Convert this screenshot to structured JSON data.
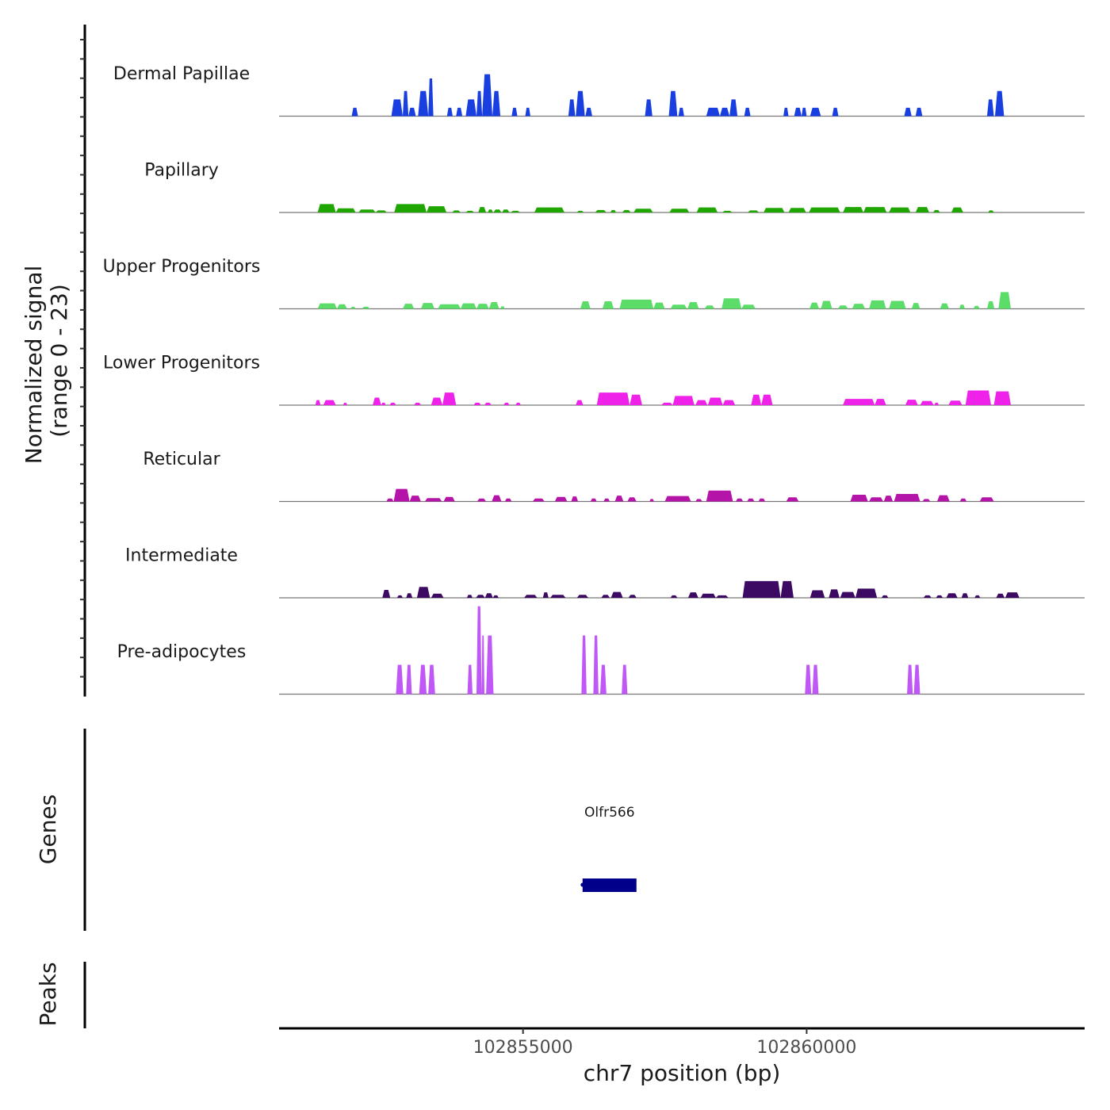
{
  "chart_data": {
    "type": "area",
    "title": "",
    "ylabel_line1": "Normalized signal",
    "ylabel_line2": "(range 0 - 23)",
    "xlabel": "chr7 position (bp)",
    "xlim": [
      102850700,
      102864900
    ],
    "ylim": [
      0,
      23
    ],
    "x_ticks": [
      {
        "value": 102855000,
        "label": "102855000"
      },
      {
        "value": 102860000,
        "label": "102860000"
      }
    ],
    "tracks": [
      {
        "name": "Dermal Papillae",
        "color": "#1a3fe0",
        "peaks": [
          [
            102851980,
            102852090,
            2
          ],
          [
            102852680,
            102852880,
            4
          ],
          [
            102852880,
            102852980,
            6
          ],
          [
            102852980,
            102853110,
            2
          ],
          [
            102853150,
            102853330,
            6
          ],
          [
            102853330,
            102853420,
            9
          ],
          [
            102853660,
            102853760,
            2
          ],
          [
            102853820,
            102853930,
            2
          ],
          [
            102853990,
            102854180,
            4
          ],
          [
            102854180,
            102854280,
            6
          ],
          [
            102854280,
            102854460,
            10
          ],
          [
            102854460,
            102854600,
            6
          ],
          [
            102854800,
            102854900,
            2
          ],
          [
            102855040,
            102855130,
            2
          ],
          [
            102855800,
            102855920,
            4
          ],
          [
            102855930,
            102856090,
            6
          ],
          [
            102856100,
            102856220,
            2
          ],
          [
            102857150,
            102857280,
            4
          ],
          [
            102857570,
            102857720,
            6
          ],
          [
            102857740,
            102857840,
            2
          ],
          [
            102858230,
            102858470,
            2
          ],
          [
            102858470,
            102858640,
            2
          ],
          [
            102858640,
            102858780,
            4
          ],
          [
            102858900,
            102859010,
            2
          ],
          [
            102859590,
            102859680,
            2
          ],
          [
            102859780,
            102859910,
            2
          ],
          [
            102859910,
            102860000,
            2
          ],
          [
            102860060,
            102860250,
            2
          ],
          [
            102860450,
            102860560,
            2
          ],
          [
            102861720,
            102861850,
            2
          ],
          [
            102861920,
            102862040,
            2
          ],
          [
            102863180,
            102863300,
            4
          ],
          [
            102863320,
            102863480,
            6
          ]
        ]
      },
      {
        "name": "Papillary",
        "color": "#1fa600",
        "peaks": [
          [
            102851380,
            102851700,
            2
          ],
          [
            102851700,
            102852050,
            1
          ],
          [
            102852100,
            102852400,
            0.7
          ],
          [
            102852400,
            102852600,
            0.5
          ],
          [
            102852730,
            102853300,
            2
          ],
          [
            102853300,
            102853650,
            1.5
          ],
          [
            102853750,
            102853900,
            0.5
          ],
          [
            102853990,
            102854140,
            0.4
          ],
          [
            102854210,
            102854350,
            1.3
          ],
          [
            102854380,
            102854470,
            0.7
          ],
          [
            102854480,
            102854620,
            0.7
          ],
          [
            102854630,
            102854760,
            0.7
          ],
          [
            102854780,
            102854950,
            0.4
          ],
          [
            102855200,
            102855730,
            1.2
          ],
          [
            102855950,
            102856070,
            0.4
          ],
          [
            102856270,
            102856470,
            0.6
          ],
          [
            102856540,
            102856640,
            0.6
          ],
          [
            102856750,
            102856900,
            0.6
          ],
          [
            102856950,
            102857290,
            0.9
          ],
          [
            102857580,
            102857930,
            0.9
          ],
          [
            102858060,
            102858430,
            1.2
          ],
          [
            102858510,
            102858690,
            0.4
          ],
          [
            102858960,
            102859160,
            0.5
          ],
          [
            102859240,
            102859610,
            1.1
          ],
          [
            102859680,
            102859990,
            1.1
          ],
          [
            102860040,
            102860590,
            1.2
          ],
          [
            102860640,
            102861000,
            1.3
          ],
          [
            102861000,
            102861410,
            1.3
          ],
          [
            102861450,
            102861830,
            1.2
          ],
          [
            102861920,
            102862160,
            1.3
          ],
          [
            102862230,
            102862350,
            0.6
          ],
          [
            102862550,
            102862760,
            1.2
          ],
          [
            102863200,
            102863300,
            0.5
          ]
        ]
      },
      {
        "name": "Upper Progenitors",
        "color": "#5cdd6a",
        "peaks": [
          [
            102851380,
            102851720,
            1.3
          ],
          [
            102851720,
            102851900,
            1.1
          ],
          [
            102851960,
            102852050,
            0.5
          ],
          [
            102852160,
            102852300,
            0.5
          ],
          [
            102852880,
            102853080,
            1.2
          ],
          [
            102853200,
            102853440,
            1.4
          ],
          [
            102853500,
            102853900,
            1.1
          ],
          [
            102853900,
            102854180,
            1.3
          ],
          [
            102854180,
            102854400,
            1.2
          ],
          [
            102854400,
            102854580,
            1.6
          ],
          [
            102854600,
            102854680,
            0.6
          ],
          [
            102856010,
            102856190,
            1.8
          ],
          [
            102856400,
            102856600,
            1.8
          ],
          [
            102856700,
            102857300,
            2.2
          ],
          [
            102857300,
            102857500,
            1.5
          ],
          [
            102857600,
            102857890,
            1.0
          ],
          [
            102857900,
            102858100,
            1.6
          ],
          [
            102858200,
            102858380,
            0.8
          ],
          [
            102858500,
            102858850,
            2.5
          ],
          [
            102858850,
            102859100,
            1.0
          ],
          [
            102860050,
            102860220,
            1.5
          ],
          [
            102860250,
            102860450,
            1.9
          ],
          [
            102860550,
            102860730,
            0.8
          ],
          [
            102860800,
            102861030,
            1.2
          ],
          [
            102861100,
            102861400,
            2.0
          ],
          [
            102861450,
            102861750,
            1.9
          ],
          [
            102861850,
            102862000,
            1.4
          ],
          [
            102862350,
            102862510,
            1.3
          ],
          [
            102862690,
            102862790,
            1.0
          ],
          [
            102862940,
            102863050,
            0.7
          ],
          [
            102863180,
            102863310,
            1.8
          ],
          [
            102863380,
            102863600,
            4.0
          ]
        ]
      },
      {
        "name": "Lower Progenitors",
        "color": "#ee22e8",
        "peaks": [
          [
            102851340,
            102851430,
            1.2
          ],
          [
            102851480,
            102851700,
            1.2
          ],
          [
            102851830,
            102851900,
            0.6
          ],
          [
            102852350,
            102852500,
            1.8
          ],
          [
            102852500,
            102852580,
            0.6
          ],
          [
            102852650,
            102852760,
            0.6
          ],
          [
            102853080,
            102853200,
            0.6
          ],
          [
            102853380,
            102853580,
            1.8
          ],
          [
            102853580,
            102853820,
            3.0
          ],
          [
            102854130,
            102854260,
            0.6
          ],
          [
            102854320,
            102854440,
            0.6
          ],
          [
            102854660,
            102854760,
            0.6
          ],
          [
            102854870,
            102854960,
            0.6
          ],
          [
            102855930,
            102856060,
            1.2
          ],
          [
            102856300,
            102856880,
            3.0
          ],
          [
            102856880,
            102857100,
            2.5
          ],
          [
            102857440,
            102857640,
            0.6
          ],
          [
            102857640,
            102858020,
            2.2
          ],
          [
            102858040,
            102858250,
            1.2
          ],
          [
            102858260,
            102858520,
            1.8
          ],
          [
            102858520,
            102858740,
            1.2
          ],
          [
            102859020,
            102859200,
            2.5
          ],
          [
            102859200,
            102859400,
            2.5
          ],
          [
            102860640,
            102861200,
            1.5
          ],
          [
            102861200,
            102861400,
            1.5
          ],
          [
            102861740,
            102861960,
            1.3
          ],
          [
            102862000,
            102862240,
            1.0
          ],
          [
            102862250,
            102862330,
            0.6
          ],
          [
            102862500,
            102862740,
            1.1
          ],
          [
            102862800,
            102863250,
            3.5
          ],
          [
            102863300,
            102863600,
            3.3
          ]
        ]
      },
      {
        "name": "Reticular",
        "color": "#b514a8",
        "peaks": [
          [
            102852590,
            102852720,
            0.7
          ],
          [
            102852720,
            102853000,
            3.0
          ],
          [
            102853000,
            102853200,
            1.4
          ],
          [
            102853270,
            102853570,
            0.8
          ],
          [
            102853600,
            102853800,
            1.1
          ],
          [
            102854190,
            102854350,
            0.7
          ],
          [
            102854450,
            102854620,
            1.5
          ],
          [
            102854680,
            102854800,
            0.7
          ],
          [
            102855170,
            102855380,
            0.7
          ],
          [
            102855560,
            102855780,
            1.1
          ],
          [
            102855850,
            102855970,
            1.2
          ],
          [
            102856190,
            102856300,
            0.7
          ],
          [
            102856420,
            102856530,
            0.7
          ],
          [
            102856620,
            102856770,
            1.4
          ],
          [
            102856840,
            102857000,
            1.0
          ],
          [
            102857230,
            102857310,
            0.6
          ],
          [
            102857500,
            102857960,
            1.3
          ],
          [
            102858040,
            102858160,
            0.6
          ],
          [
            102858230,
            102858700,
            2.6
          ],
          [
            102858750,
            102858880,
            0.7
          ],
          [
            102858950,
            102859080,
            0.7
          ],
          [
            102859150,
            102859270,
            0.7
          ],
          [
            102859640,
            102859860,
            1.0
          ],
          [
            102860770,
            102861080,
            1.6
          ],
          [
            102861100,
            102861350,
            1.0
          ],
          [
            102861360,
            102861520,
            1.4
          ],
          [
            102861540,
            102862000,
            1.8
          ],
          [
            102862040,
            102862180,
            0.6
          ],
          [
            102862300,
            102862520,
            1.5
          ],
          [
            102862700,
            102862820,
            0.7
          ],
          [
            102863050,
            102863300,
            1.0
          ]
        ]
      },
      {
        "name": "Intermediate",
        "color": "#3d0a63",
        "peaks": [
          [
            102852520,
            102852660,
            1.9
          ],
          [
            102852780,
            102852880,
            0.6
          ],
          [
            102852940,
            102853050,
            1.1
          ],
          [
            102853130,
            102853360,
            2.6
          ],
          [
            102853380,
            102853600,
            1.0
          ],
          [
            102854010,
            102854110,
            0.7
          ],
          [
            102854170,
            102854330,
            0.7
          ],
          [
            102854330,
            102854470,
            1.1
          ],
          [
            102854470,
            102854570,
            0.6
          ],
          [
            102855020,
            102855250,
            0.7
          ],
          [
            102855350,
            102855450,
            1.3
          ],
          [
            102855480,
            102855750,
            0.7
          ],
          [
            102855950,
            102856150,
            0.7
          ],
          [
            102856380,
            102856530,
            0.7
          ],
          [
            102856550,
            102856760,
            1.4
          ],
          [
            102856860,
            102857000,
            0.7
          ],
          [
            102857600,
            102857720,
            0.6
          ],
          [
            102857910,
            102858090,
            1.3
          ],
          [
            102858130,
            102858400,
            1.0
          ],
          [
            102858400,
            102858620,
            0.6
          ],
          [
            102858870,
            102859540,
            4.0
          ],
          [
            102859540,
            102859770,
            4.0
          ],
          [
            102860060,
            102860320,
            1.8
          ],
          [
            102860390,
            102860580,
            2.0
          ],
          [
            102860590,
            102860860,
            1.4
          ],
          [
            102860860,
            102861240,
            2.2
          ],
          [
            102861320,
            102861440,
            0.6
          ],
          [
            102862060,
            102862200,
            0.6
          ],
          [
            102862280,
            102862400,
            0.6
          ],
          [
            102862460,
            102862660,
            1.1
          ],
          [
            102862730,
            102862850,
            1.1
          ],
          [
            102862960,
            102863060,
            0.6
          ],
          [
            102863340,
            102863490,
            1.0
          ],
          [
            102863500,
            102863750,
            1.3
          ]
        ]
      },
      {
        "name": "Pre-adipocytes",
        "color": "#c057f7",
        "peaks": [
          [
            102852760,
            102852890,
            7
          ],
          [
            102852940,
            102853040,
            7
          ],
          [
            102853170,
            102853300,
            7
          ],
          [
            102853330,
            102853450,
            7
          ],
          [
            102854020,
            102854110,
            7
          ],
          [
            102854180,
            102854270,
            21
          ],
          [
            102854270,
            102854320,
            14
          ],
          [
            102854350,
            102854480,
            14
          ],
          [
            102856030,
            102856120,
            14
          ],
          [
            102856240,
            102856330,
            14
          ],
          [
            102856360,
            102856470,
            7
          ],
          [
            102856740,
            102856840,
            7
          ],
          [
            102859970,
            102860080,
            7
          ],
          [
            102860100,
            102860210,
            7
          ],
          [
            102861770,
            102861870,
            7
          ],
          [
            102861890,
            102862000,
            7
          ]
        ]
      }
    ],
    "genes_track": {
      "label": "Genes",
      "genes": [
        {
          "name": "Olfr566",
          "start": 102856050,
          "end": 102857000,
          "strand": "-",
          "color": "#00008b"
        }
      ]
    },
    "peaks_track": {
      "label": "Peaks",
      "peaks": []
    }
  }
}
